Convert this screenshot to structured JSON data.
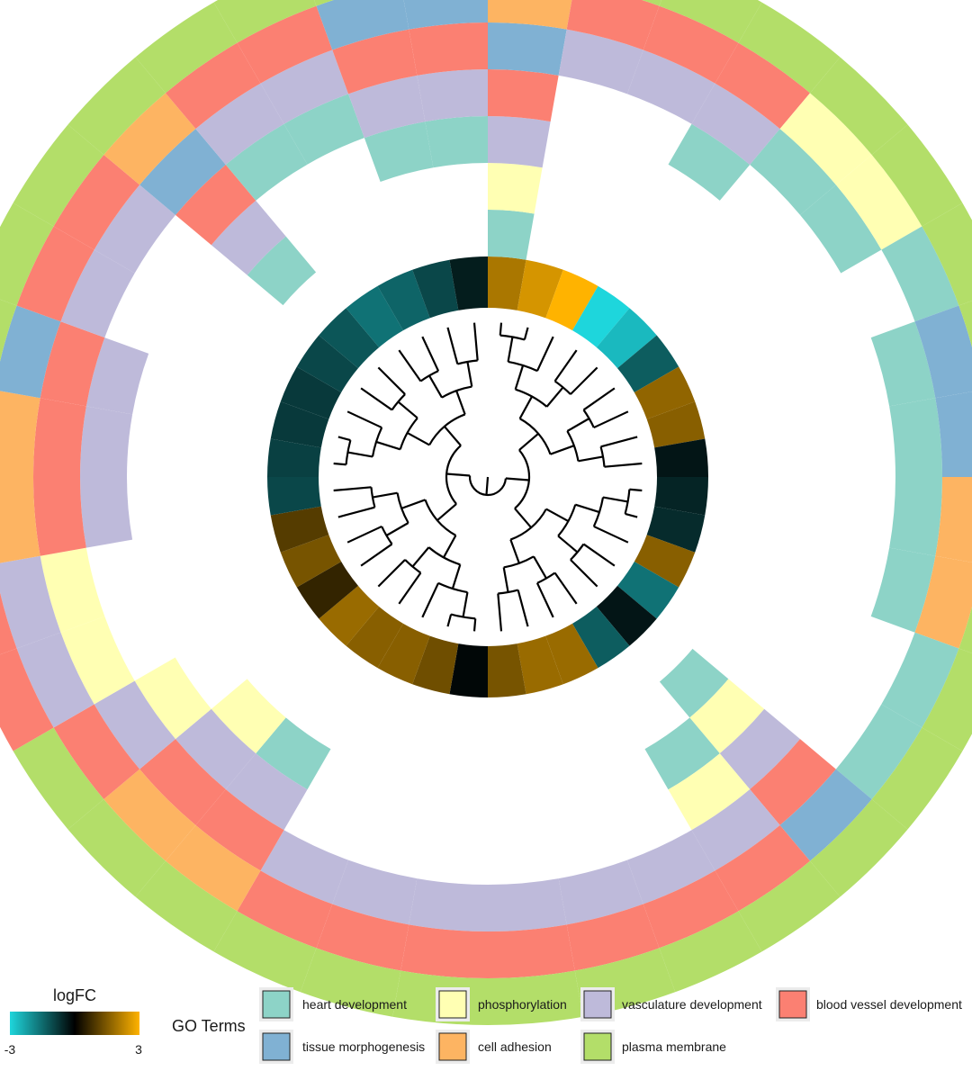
{
  "chart_data": {
    "type": "circular-heatmap-dendrogram",
    "genes": 36,
    "logfc_legend": {
      "title": "logFC",
      "min_label": "-3",
      "max_label": "3",
      "low_color": "#1ED6DC",
      "mid_color": "#000000",
      "high_color": "#FFB300"
    },
    "go_legend": {
      "title": "GO Terms",
      "terms": [
        {
          "name": "heart development",
          "color": "#8DD3C7"
        },
        {
          "name": "phosphorylation",
          "color": "#FFFFB3"
        },
        {
          "name": "vasculature development",
          "color": "#BEBADA"
        },
        {
          "name": "blood vessel development",
          "color": "#FB8072"
        },
        {
          "name": "tissue morphogenesis",
          "color": "#80B1D3"
        },
        {
          "name": "cell adhesion",
          "color": "#FDB462"
        },
        {
          "name": "plasma membrane",
          "color": "#B3DE69"
        }
      ]
    },
    "logfc": [
      2.0,
      2.5,
      3.0,
      -3.0,
      -2.6,
      -1.3,
      1.7,
      1.6,
      -0.3,
      -0.5,
      -0.6,
      1.6,
      -1.6,
      -0.3,
      -1.3,
      1.8,
      1.8,
      1.4,
      -0.1,
      1.3,
      1.6,
      1.6,
      1.8,
      0.6,
      1.4,
      1.0,
      -1.0,
      -0.9,
      -0.8,
      -0.8,
      -1.0,
      -1.2,
      -1.6,
      -1.4,
      -1.0,
      -0.4
    ],
    "go_annotations": [
      [
        "plasma membrane",
        "cell adhesion",
        "tissue morphogenesis",
        "blood vessel development",
        "vasculature development",
        "phosphorylation",
        "heart development"
      ],
      [
        "plasma membrane",
        "blood vessel development",
        "vasculature development"
      ],
      [
        "plasma membrane",
        "blood vessel development",
        "vasculature development"
      ],
      [
        "plasma membrane",
        "blood vessel development",
        "vasculature development",
        "heart development"
      ],
      [
        "plasma membrane",
        "phosphorylation",
        "heart development"
      ],
      [
        "plasma membrane",
        "phosphorylation",
        "heart development"
      ],
      [
        "plasma membrane",
        "heart development"
      ],
      [
        "plasma membrane",
        "tissue morphogenesis",
        "heart development"
      ],
      [
        "plasma membrane",
        "tissue morphogenesis",
        "heart development"
      ],
      [
        "plasma membrane",
        "cell adhesion",
        "heart development"
      ],
      [
        "plasma membrane",
        "cell adhesion",
        "heart development"
      ],
      [
        "plasma membrane",
        "heart development"
      ],
      [
        "plasma membrane",
        "heart development"
      ],
      [
        "plasma membrane",
        "tissue morphogenesis",
        "blood vessel development",
        "vasculature development",
        "phosphorylation",
        "heart development"
      ],
      [
        "plasma membrane",
        "blood vessel development",
        "vasculature development",
        "phosphorylation",
        "heart development"
      ],
      [
        "plasma membrane",
        "blood vessel development",
        "vasculature development"
      ],
      [
        "plasma membrane",
        "blood vessel development",
        "vasculature development"
      ],
      [
        "plasma membrane",
        "blood vessel development",
        "vasculature development"
      ],
      [
        "plasma membrane",
        "blood vessel development",
        "vasculature development"
      ],
      [
        "plasma membrane",
        "blood vessel development",
        "vasculature development"
      ],
      [
        "plasma membrane",
        "blood vessel development",
        "vasculature development"
      ],
      [
        "plasma membrane",
        "cell adhesion",
        "blood vessel development",
        "vasculature development",
        "heart development"
      ],
      [
        "plasma membrane",
        "cell adhesion",
        "blood vessel development",
        "vasculature development",
        "phosphorylation"
      ],
      [
        "plasma membrane",
        "blood vessel development",
        "vasculature development",
        "phosphorylation"
      ],
      [
        "blood vessel development",
        "vasculature development",
        "phosphorylation"
      ],
      [
        "blood vessel development",
        "vasculature development",
        "phosphorylation"
      ],
      [
        "plasma membrane",
        "cell adhesion",
        "blood vessel development",
        "vasculature development"
      ],
      [
        "plasma membrane",
        "cell adhesion",
        "blood vessel development",
        "vasculature development"
      ],
      [
        "plasma membrane",
        "tissue morphogenesis",
        "blood vessel development",
        "vasculature development"
      ],
      [
        "plasma membrane",
        "blood vessel development",
        "vasculature development"
      ],
      [
        "plasma membrane",
        "blood vessel development",
        "vasculature development"
      ],
      [
        "plasma membrane",
        "cell adhesion",
        "tissue morphogenesis",
        "blood vessel development",
        "vasculature development",
        "heart development"
      ],
      [
        "plasma membrane",
        "blood vessel development",
        "vasculature development",
        "heart development"
      ],
      [
        "plasma membrane",
        "blood vessel development",
        "vasculature development",
        "heart development"
      ],
      [
        "plasma membrane",
        "tissue morphogenesis",
        "blood vessel development",
        "vasculature development",
        "heart development"
      ],
      [
        "plasma membrane",
        "tissue morphogenesis",
        "blood vessel development",
        "vasculature development",
        "heart development"
      ]
    ]
  }
}
